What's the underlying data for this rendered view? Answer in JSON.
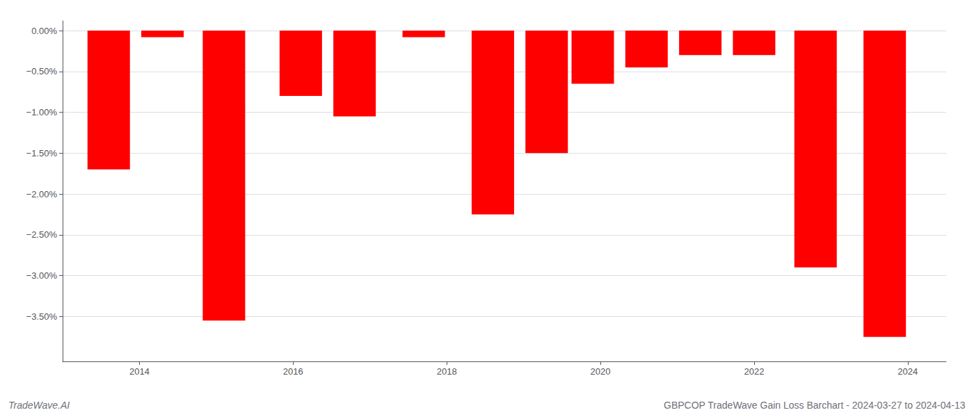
{
  "chart_data": {
    "type": "bar",
    "x": [
      2013.6,
      2014.3,
      2015.1,
      2016.1,
      2016.8,
      2017.7,
      2018.6,
      2019.3,
      2019.9,
      2020.6,
      2021.3,
      2022.0,
      2022.8,
      2023.7
    ],
    "values": [
      -1.7,
      -0.08,
      -3.55,
      -0.8,
      -1.05,
      -0.08,
      -2.25,
      -1.5,
      -0.65,
      -0.45,
      -0.3,
      -0.3,
      -2.9,
      -3.75
    ],
    "color": "#ff0000",
    "xlim": [
      2013.0,
      2024.5
    ],
    "xticks": [
      2014,
      2016,
      2018,
      2020,
      2022,
      2024
    ],
    "ylim": [
      -4.05,
      0.12
    ],
    "yticks": [
      {
        "value": 0.0,
        "label": "0.00%"
      },
      {
        "value": -0.5,
        "label": "−0.50%"
      },
      {
        "value": -1.0,
        "label": "−1.00%"
      },
      {
        "value": -1.5,
        "label": "−1.50%"
      },
      {
        "value": -2.0,
        "label": "−2.00%"
      },
      {
        "value": -2.5,
        "label": "−2.50%"
      },
      {
        "value": -3.0,
        "label": "−3.00%"
      },
      {
        "value": -3.5,
        "label": "−3.50%"
      }
    ],
    "grid": true,
    "annotations": [
      "TradeWave.AI",
      "GBPCOP TradeWave Gain Loss Barchart - 2024-03-27 to 2024-04-13"
    ]
  }
}
